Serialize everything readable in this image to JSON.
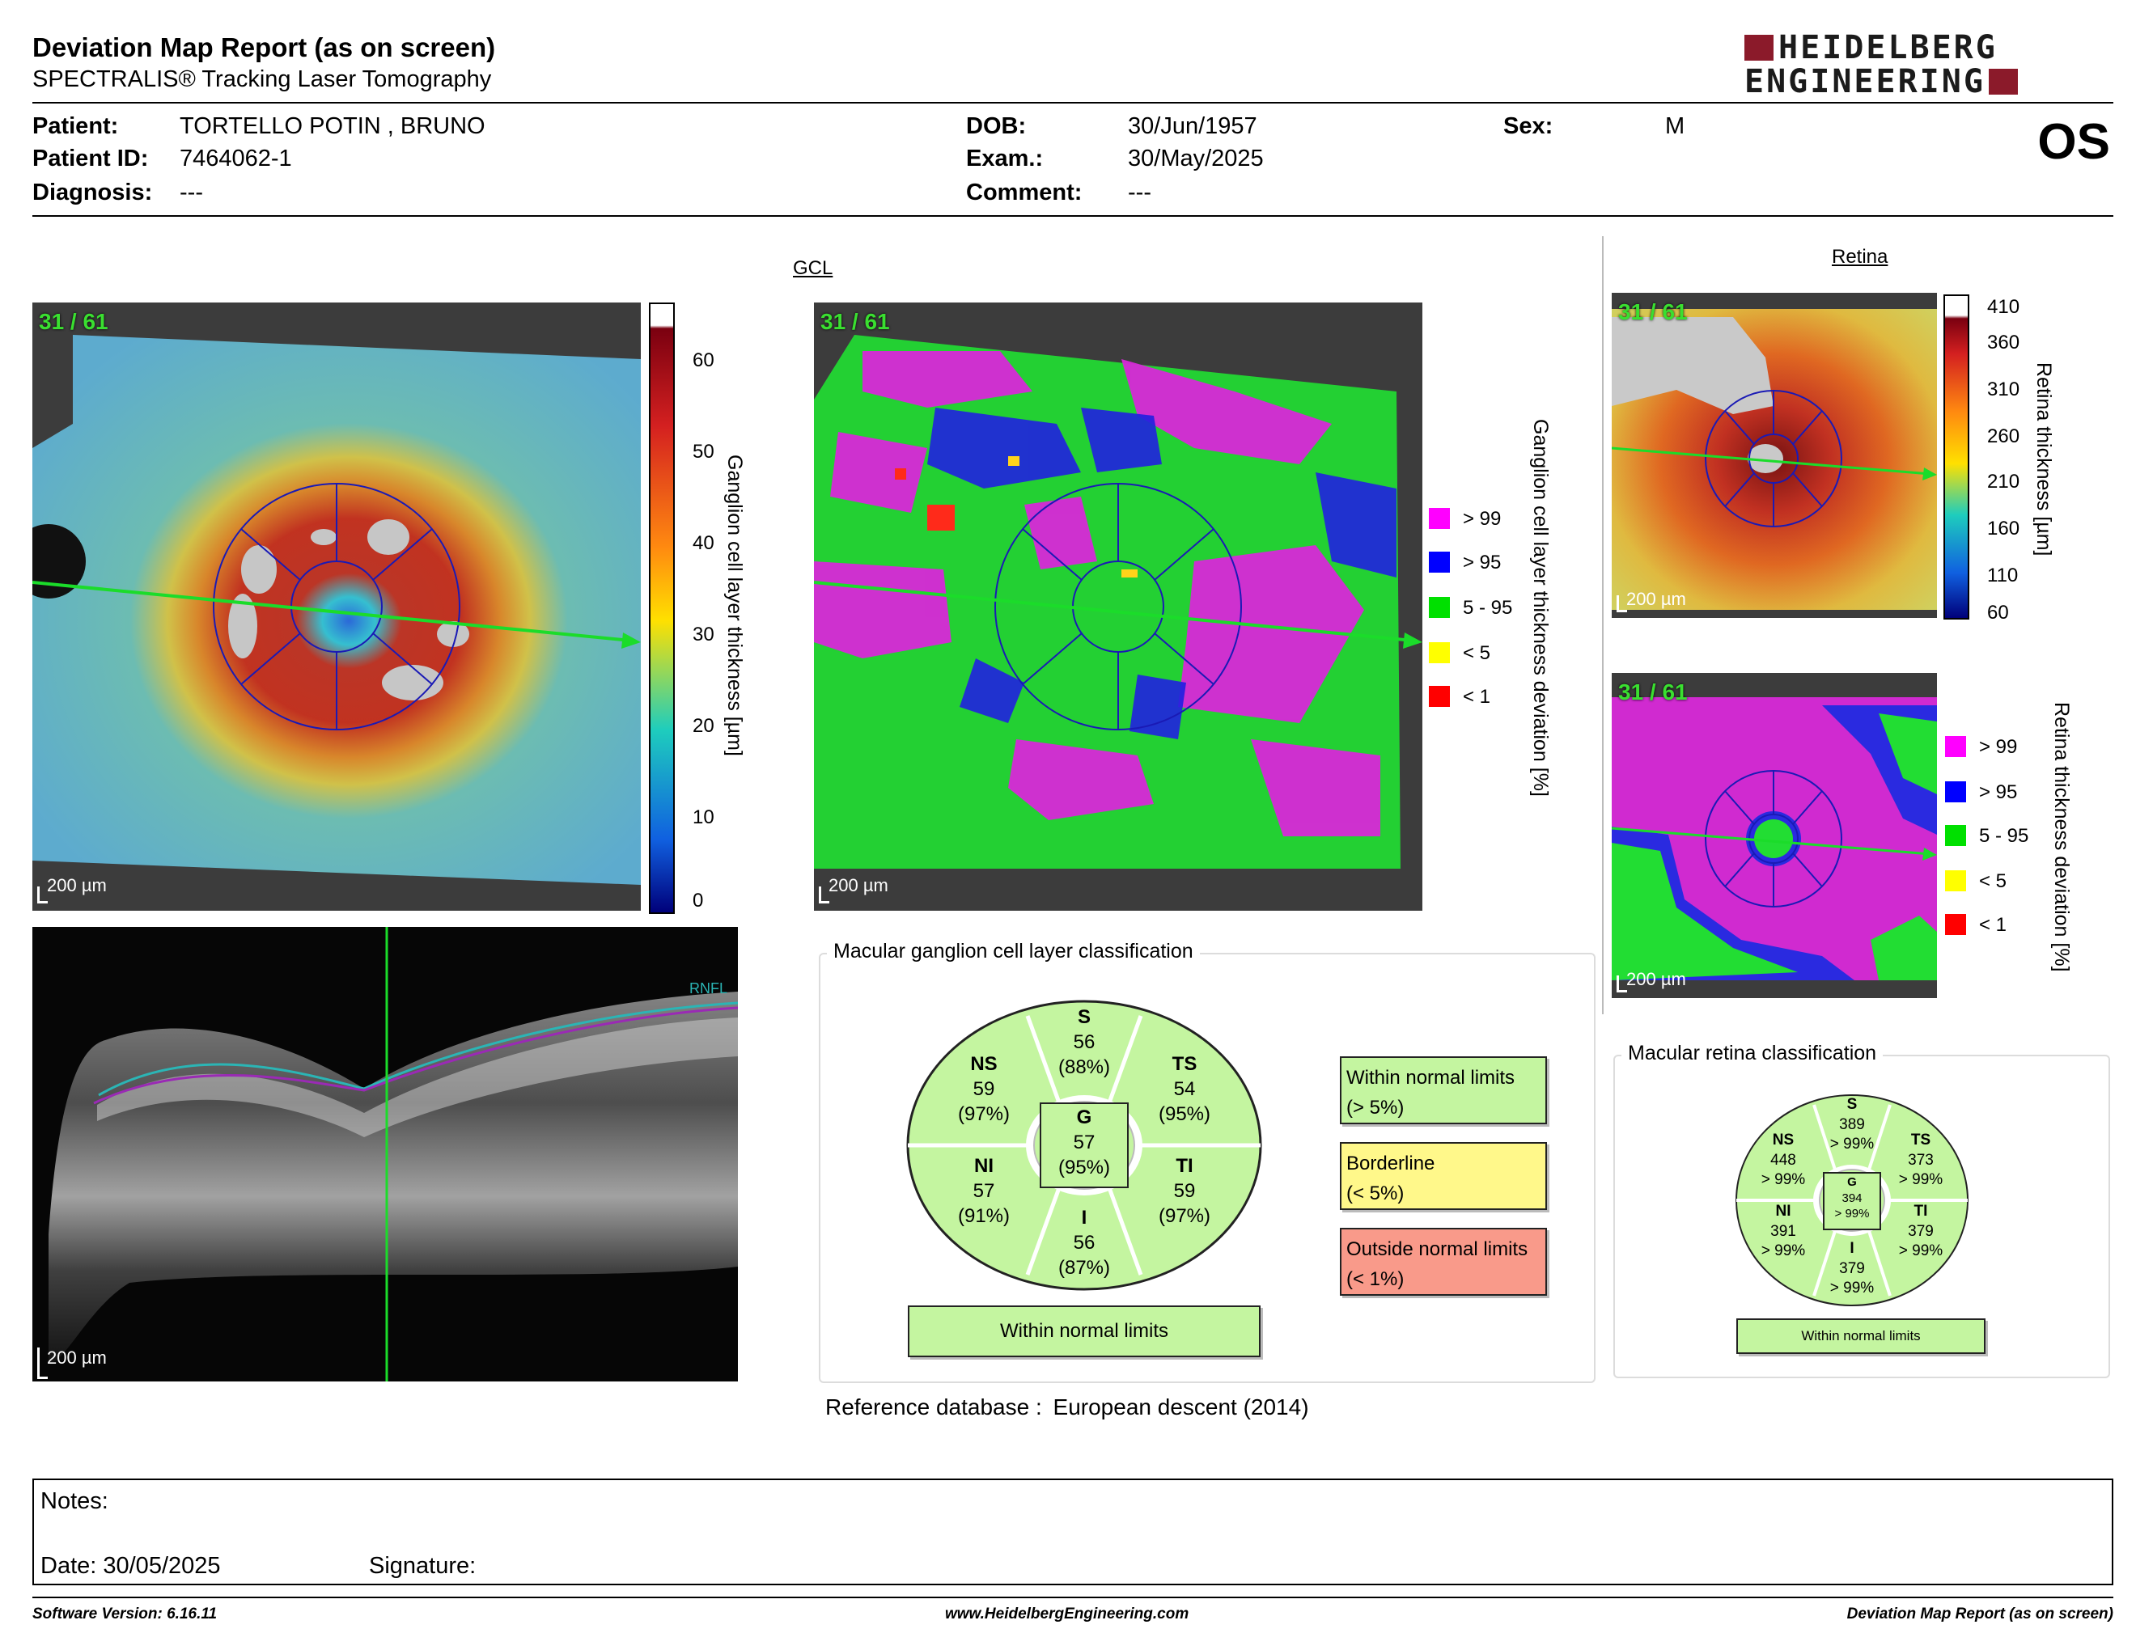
{
  "report": {
    "title": "Deviation Map Report (as on screen)",
    "subtitle": "SPECTRALIS® Tracking Laser Tomography"
  },
  "logo": {
    "line1": "HEIDELBERG",
    "line2": "ENGINEERING",
    "color": "#8b1a2a"
  },
  "patient": {
    "name_label": "Patient:",
    "name": "TORTELLO POTIN , BRUNO",
    "id_label": "Patient ID:",
    "id": "7464062-1",
    "diagnosis_label": "Diagnosis:",
    "diagnosis": "---",
    "dob_label": "DOB:",
    "dob": "30/Jun/1957",
    "exam_label": "Exam.:",
    "exam": "30/May/2025",
    "comment_label": "Comment:",
    "comment": "---",
    "sex_label": "Sex:",
    "sex": "M",
    "eye": "OS"
  },
  "gcl": {
    "section_title": "GCL",
    "scan_label": "31 / 61",
    "scale_label": "200 µm",
    "thickness_axis_label": "Ganglion cell layer thickness [µm]",
    "thickness_ticks": [
      "60",
      "50",
      "40",
      "30",
      "20",
      "10",
      "0"
    ],
    "deviation_axis_label": "Ganglion cell layer thickness deviation [%]",
    "bscan_overlay_label": "RNFL"
  },
  "deviation_legend": [
    {
      "label": "> 99",
      "color": "#ff00ff"
    },
    {
      "label": "> 95",
      "color": "#0000ff"
    },
    {
      "label": "5 - 95",
      "color": "#00e000"
    },
    {
      "label": "< 5",
      "color": "#ffff00"
    },
    {
      "label": "< 1",
      "color": "#ff0000"
    }
  ],
  "retina": {
    "section_title": "Retina",
    "scan_label": "31 / 61",
    "scale_label": "200 µm",
    "thickness_axis_label": "Retina thickness [µm]",
    "thickness_ticks": [
      "410",
      "360",
      "310",
      "260",
      "210",
      "160",
      "110",
      "60"
    ],
    "deviation_axis_label": "Retina thickness deviation [%]"
  },
  "gcl_classification": {
    "title": "Macular ganglion cell layer classification",
    "sectors": {
      "S": {
        "name": "S",
        "value": "56",
        "pct": "(88%)"
      },
      "NS": {
        "name": "NS",
        "value": "59",
        "pct": "(97%)"
      },
      "TS": {
        "name": "TS",
        "value": "54",
        "pct": "(95%)"
      },
      "G": {
        "name": "G",
        "value": "57",
        "pct": "(95%)"
      },
      "NI": {
        "name": "NI",
        "value": "57",
        "pct": "(91%)"
      },
      "TI": {
        "name": "TI",
        "value": "59",
        "pct": "(97%)"
      },
      "I": {
        "name": "I",
        "value": "56",
        "pct": "(87%)"
      }
    },
    "result": "Within normal limits",
    "legend": {
      "within_1": "Within normal limits",
      "within_2": "(> 5%)",
      "border_1": "Borderline",
      "border_2": "(< 5%)",
      "outside_1": "Outside normal limits",
      "outside_2": "(< 1%)"
    },
    "colors": {
      "within": "#c4f5a0",
      "borderline": "#fff88a",
      "outside": "#f99a8a"
    }
  },
  "retina_classification": {
    "title": "Macular retina classification",
    "sectors": {
      "S": {
        "name": "S",
        "value": "389",
        "pct": "> 99%"
      },
      "NS": {
        "name": "NS",
        "value": "448",
        "pct": "> 99%"
      },
      "TS": {
        "name": "TS",
        "value": "373",
        "pct": "> 99%"
      },
      "G": {
        "name": "G",
        "value": "394",
        "pct": "> 99%"
      },
      "NI": {
        "name": "NI",
        "value": "391",
        "pct": "> 99%"
      },
      "TI": {
        "name": "TI",
        "value": "379",
        "pct": "> 99%"
      },
      "I": {
        "name": "I",
        "value": "379",
        "pct": "> 99%"
      }
    },
    "result": "Within normal limits"
  },
  "reference": {
    "label": "Reference database",
    "colon": ":",
    "value": "European descent (2014)"
  },
  "notes": {
    "notes_label": "Notes:",
    "date_label": "Date: 30/05/2025",
    "signature_label": "Signature:"
  },
  "footer": {
    "software": "Software Version: 6.16.11",
    "website": "www.HeidelbergEngineering.com",
    "report": "Deviation Map Report (as on screen)"
  }
}
